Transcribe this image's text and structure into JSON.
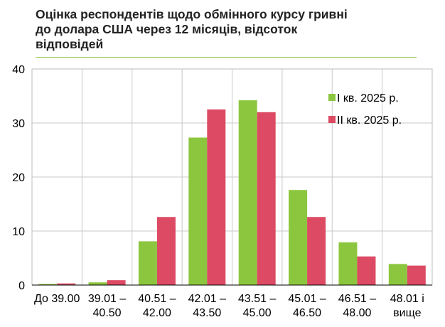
{
  "title_lines": [
    "Оцінка респондентів щодо обмінного курсу гривні",
    "до долара США через 12 місяців, відсоток",
    "відповідей"
  ],
  "chart_data": {
    "type": "bar",
    "title": "Оцінка респондентів щодо обмінного курсу гривні до долара США через 12 місяців, відсоток відповідей",
    "categories": [
      [
        "До 39.00"
      ],
      [
        "39.01 –",
        "40.50"
      ],
      [
        "40.51 –",
        "42.00"
      ],
      [
        "42.01 –",
        "43.50"
      ],
      [
        "43.51 –",
        "45.00"
      ],
      [
        "45.01 –",
        "46.50"
      ],
      [
        "46.51 –",
        "48.00"
      ],
      [
        "48.01 і",
        "вище"
      ]
    ],
    "series": [
      {
        "name": "І кв. 2025 р.",
        "color": "#8cc63f",
        "values": [
          0.2,
          0.5,
          8.1,
          27.3,
          34.2,
          17.6,
          7.9,
          3.9
        ]
      },
      {
        "name": "ІІ кв. 2025 р.",
        "color": "#dc4a63",
        "values": [
          0.3,
          0.9,
          12.6,
          32.5,
          32.0,
          12.6,
          5.3,
          3.6
        ]
      }
    ],
    "ylim": [
      0,
      40
    ],
    "yticks": [
      0,
      10,
      20,
      30,
      40
    ],
    "grid": true,
    "legend_position": "top-right"
  }
}
